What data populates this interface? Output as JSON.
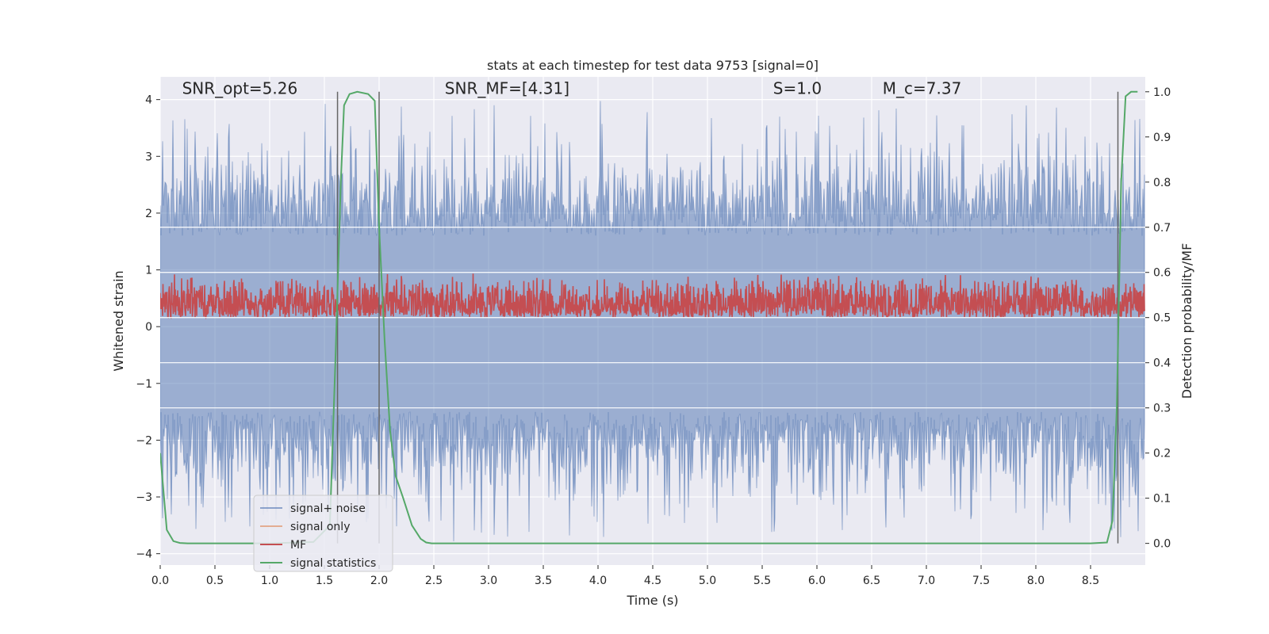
{
  "chart_data": {
    "type": "line",
    "title": "stats at each timestep for test data 9753 [signal=0]",
    "xlabel": "Time (s)",
    "ylabel": "Whitened strain",
    "ylabel_right": "Detection probability/MF",
    "xlim": [
      0.0,
      9.0
    ],
    "ylim": [
      -4.2,
      4.4
    ],
    "ylim_right": [
      -0.048,
      1.033
    ],
    "x_ticks": [
      0.0,
      0.5,
      1.0,
      1.5,
      2.0,
      2.5,
      3.0,
      3.5,
      4.0,
      4.5,
      5.0,
      5.5,
      6.0,
      6.5,
      7.0,
      7.5,
      8.0,
      8.5
    ],
    "x_tick_labels": [
      "0.0",
      "0.5",
      "1.0",
      "1.5",
      "2.0",
      "2.5",
      "3.0",
      "3.5",
      "4.0",
      "4.5",
      "5.0",
      "5.5",
      "6.0",
      "6.5",
      "7.0",
      "7.5",
      "8.0",
      "8.5"
    ],
    "y_ticks": [
      -4,
      -3,
      -2,
      -1,
      0,
      1,
      2,
      3,
      4
    ],
    "y_tick_labels": [
      "−4",
      "−3",
      "−2",
      "−1",
      "0",
      "1",
      "2",
      "3",
      "4"
    ],
    "y_ticks_right": [
      0.0,
      0.1,
      0.2,
      0.3,
      0.4,
      0.5,
      0.6,
      0.7,
      0.8,
      0.9,
      1.0
    ],
    "y_tick_labels_right": [
      "0.0",
      "0.1",
      "0.2",
      "0.3",
      "0.4",
      "0.5",
      "0.6",
      "0.7",
      "0.8",
      "0.9",
      "1.0"
    ],
    "grid": true,
    "legend_position": "lower-left",
    "annotations": [
      {
        "text": "SNR_opt=5.26",
        "x": 0.2,
        "y": 4.1
      },
      {
        "text": "SNR_MF=[4.31]",
        "x": 2.6,
        "y": 4.1
      },
      {
        "text": "S=1.0",
        "x": 5.6,
        "y": 4.1
      },
      {
        "text": "M_c=7.37",
        "x": 6.6,
        "y": 4.1
      }
    ],
    "vertical_lines": [
      1.62,
      2.0,
      8.75
    ],
    "series": [
      {
        "name": "signal+ noise",
        "color": "#4c72b0",
        "axis": "left",
        "style": "dense-noise",
        "duration": 9.0,
        "sample_rate": 2048,
        "std": 1.0,
        "envelope_max": 4.0,
        "envelope_min": -3.8
      },
      {
        "name": "signal only",
        "color": "#dd8452",
        "axis": "left",
        "x": [],
        "y": []
      },
      {
        "name": "MF",
        "color": "#c44e52",
        "axis": "right",
        "style": "dense-noise",
        "duration": 9.0,
        "baseline": 0.5,
        "range_min": 0.5,
        "range_max": 0.6
      },
      {
        "name": "signal statistics",
        "color": "#55a868",
        "axis": "right",
        "x": [
          0.0,
          0.06,
          0.12,
          0.18,
          0.25,
          0.5,
          1.0,
          1.4,
          1.55,
          1.6,
          1.65,
          1.68,
          1.73,
          1.8,
          1.9,
          1.96,
          2.0,
          2.05,
          2.1,
          2.15,
          2.22,
          2.3,
          2.38,
          2.43,
          2.48,
          2.55,
          3.0,
          5.0,
          7.0,
          8.5,
          8.65,
          8.7,
          8.74,
          8.78,
          8.82,
          8.87,
          8.93
        ],
        "y": [
          0.2,
          0.03,
          0.005,
          0.001,
          0.0,
          0.0,
          0.0,
          0.003,
          0.04,
          0.4,
          0.8,
          0.97,
          0.995,
          1.0,
          0.995,
          0.98,
          0.7,
          0.45,
          0.25,
          0.15,
          0.1,
          0.04,
          0.01,
          0.002,
          0.0,
          0.0,
          0.0,
          0.0,
          0.0,
          0.0,
          0.002,
          0.05,
          0.3,
          0.8,
          0.99,
          1.0,
          1.0
        ]
      }
    ]
  }
}
